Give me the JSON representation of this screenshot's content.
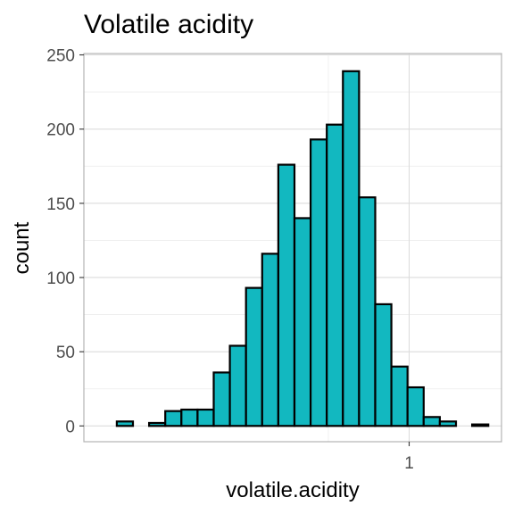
{
  "chart_data": {
    "type": "bar",
    "title": "Volatile acidity",
    "xlabel": "volatile.acidity",
    "ylabel": "count",
    "xlim": [
      0.1,
      1.2
    ],
    "ylim": [
      0,
      250
    ],
    "bin_width": 0.05,
    "x_ticks": [
      1
    ],
    "x_tick_labels": [
      "1"
    ],
    "y_ticks": [
      0,
      50,
      100,
      150,
      200,
      250
    ],
    "y_tick_labels": [
      "0",
      "50",
      "100",
      "150",
      "200",
      "250"
    ],
    "grid": true,
    "bar_fill": "#12b8c0",
    "bar_stroke": "#000000",
    "bins": [
      {
        "center": 0.12,
        "count": 3
      },
      {
        "center": 0.17,
        "count": 0
      },
      {
        "center": 0.22,
        "count": 2
      },
      {
        "center": 0.27,
        "count": 10
      },
      {
        "center": 0.32,
        "count": 11
      },
      {
        "center": 0.37,
        "count": 11
      },
      {
        "center": 0.42,
        "count": 36
      },
      {
        "center": 0.47,
        "count": 54
      },
      {
        "center": 0.52,
        "count": 93
      },
      {
        "center": 0.57,
        "count": 116
      },
      {
        "center": 0.62,
        "count": 176
      },
      {
        "center": 0.67,
        "count": 140
      },
      {
        "center": 0.72,
        "count": 193
      },
      {
        "center": 0.77,
        "count": 203
      },
      {
        "center": 0.82,
        "count": 239
      },
      {
        "center": 0.87,
        "count": 154
      },
      {
        "center": 0.92,
        "count": 82
      },
      {
        "center": 0.97,
        "count": 40
      },
      {
        "center": 1.02,
        "count": 26
      },
      {
        "center": 1.07,
        "count": 6
      },
      {
        "center": 1.12,
        "count": 3
      },
      {
        "center": 1.17,
        "count": 0
      },
      {
        "center": 1.22,
        "count": 1
      }
    ]
  }
}
